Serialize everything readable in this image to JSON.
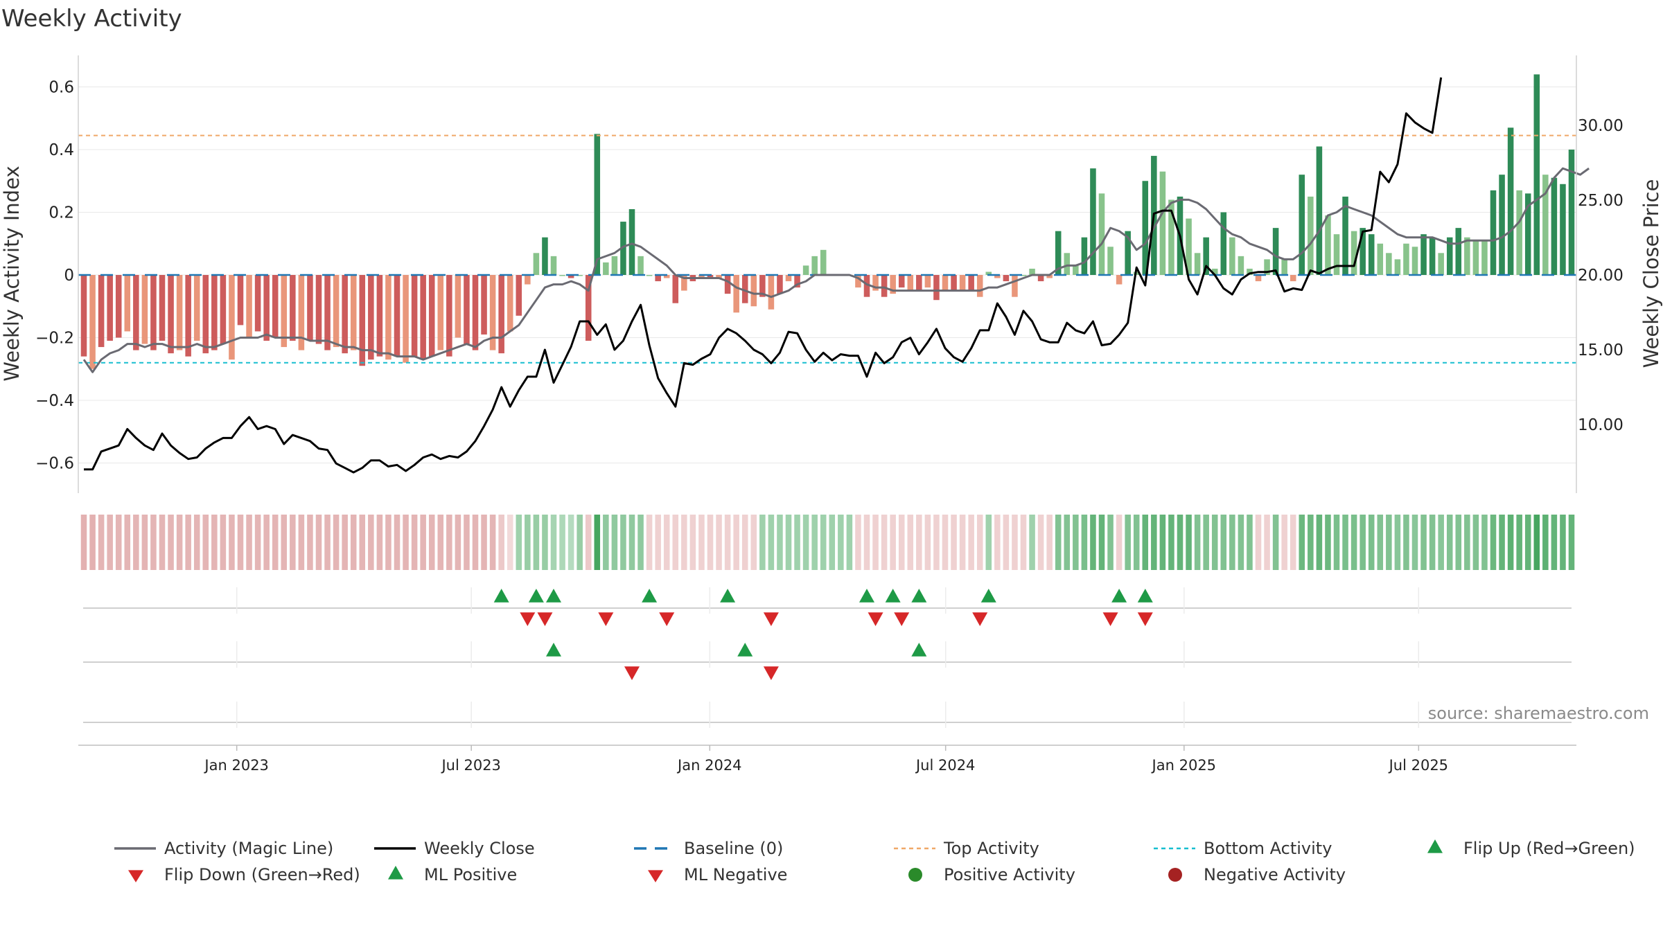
{
  "chart_data": {
    "type": "bar+line",
    "title": "Weekly Activity",
    "ylabel_left": "Weekly Activity Index",
    "ylabel_right": "Weekly Close Price",
    "source": "source: sharemaestro.com",
    "x_start": "2022-09-05",
    "x_end": "2025-10-27",
    "x_tick_labels": [
      {
        "date": "2023-01-01",
        "label": "Jan 2023"
      },
      {
        "date": "2023-07-01",
        "label": "Jul 2023"
      },
      {
        "date": "2024-01-01",
        "label": "Jan 2024"
      },
      {
        "date": "2024-07-01",
        "label": "Jul 2024"
      },
      {
        "date": "2025-01-01",
        "label": "Jan 2025"
      },
      {
        "date": "2025-07-01",
        "label": "Jul 2025"
      }
    ],
    "y_left_range": [
      -0.7,
      0.7
    ],
    "y_left_ticks": [
      {
        "v": 0.6,
        "label": "0.6"
      },
      {
        "v": 0.4,
        "label": "0.4"
      },
      {
        "v": 0.2,
        "label": "0.2"
      },
      {
        "v": 0,
        "label": "0"
      },
      {
        "v": -0.2,
        "label": "−0.2"
      },
      {
        "v": -0.4,
        "label": "−0.4"
      },
      {
        "v": -0.6,
        "label": "−0.6"
      }
    ],
    "y_right_range": [
      5,
      35
    ],
    "y_right_ticks": [
      {
        "v": 30,
        "label": "30.00"
      },
      {
        "v": 25,
        "label": "25.00"
      },
      {
        "v": 20,
        "label": "20.00"
      },
      {
        "v": 15,
        "label": "15.00"
      },
      {
        "v": 10,
        "label": "10.00"
      }
    ],
    "top_activity": 0.445,
    "bottom_activity": -0.28,
    "activity": [
      -0.26,
      -0.3,
      -0.23,
      -0.21,
      -0.2,
      -0.18,
      -0.24,
      -0.22,
      -0.24,
      -0.21,
      -0.25,
      -0.24,
      -0.26,
      -0.21,
      -0.25,
      -0.24,
      -0.22,
      -0.27,
      -0.16,
      -0.2,
      -0.18,
      -0.21,
      -0.2,
      -0.23,
      -0.21,
      -0.24,
      -0.21,
      -0.22,
      -0.24,
      -0.23,
      -0.25,
      -0.24,
      -0.29,
      -0.27,
      -0.26,
      -0.27,
      -0.26,
      -0.28,
      -0.26,
      -0.27,
      -0.26,
      -0.24,
      -0.26,
      -0.2,
      -0.22,
      -0.24,
      -0.19,
      -0.24,
      -0.25,
      -0.18,
      -0.13,
      -0.03,
      0.07,
      0.12,
      0.06,
      0.0,
      -0.01,
      0.0,
      -0.21,
      0.45,
      0.04,
      0.06,
      0.17,
      0.21,
      0.06,
      0.0,
      -0.02,
      -0.01,
      -0.09,
      -0.05,
      -0.02,
      -0.01,
      -0.01,
      -0.01,
      -0.06,
      -0.12,
      -0.09,
      -0.1,
      -0.07,
      -0.11,
      -0.06,
      -0.02,
      -0.04,
      0.03,
      0.06,
      0.08,
      0.0,
      0.0,
      0.0,
      -0.04,
      -0.07,
      -0.05,
      -0.07,
      -0.06,
      -0.04,
      -0.05,
      -0.05,
      -0.04,
      -0.08,
      -0.05,
      -0.05,
      -0.05,
      -0.05,
      -0.07,
      0.01,
      -0.01,
      -0.02,
      -0.07,
      0.0,
      0.02,
      -0.02,
      -0.01,
      0.14,
      0.07,
      0.03,
      0.12,
      0.34,
      0.26,
      0.09,
      -0.03,
      0.14,
      0.01,
      0.3,
      0.38,
      0.33,
      0.24,
      0.25,
      0.18,
      0.07,
      0.12,
      0.02,
      0.2,
      0.12,
      0.06,
      0.02,
      -0.02,
      0.05,
      0.15,
      0.05,
      -0.02,
      0.32,
      0.25,
      0.41,
      0.19,
      0.13,
      0.25,
      0.14,
      0.15,
      0.13,
      0.1,
      0.07,
      0.05,
      0.1,
      0.09,
      0.13,
      0.12,
      0.07,
      0.12,
      0.15,
      0.12,
      0.11,
      0.11,
      0.27,
      0.32,
      0.47,
      0.27,
      0.26,
      0.64,
      0.32,
      0.31,
      0.29,
      0.4
    ],
    "magic_line": [
      -0.27,
      -0.31,
      -0.27,
      -0.25,
      -0.24,
      -0.22,
      -0.22,
      -0.23,
      -0.22,
      -0.22,
      -0.23,
      -0.23,
      -0.23,
      -0.22,
      -0.23,
      -0.23,
      -0.22,
      -0.21,
      -0.2,
      -0.2,
      -0.2,
      -0.19,
      -0.2,
      -0.2,
      -0.2,
      -0.2,
      -0.21,
      -0.21,
      -0.21,
      -0.22,
      -0.23,
      -0.23,
      -0.24,
      -0.24,
      -0.25,
      -0.25,
      -0.26,
      -0.26,
      -0.26,
      -0.27,
      -0.26,
      -0.25,
      -0.24,
      -0.23,
      -0.22,
      -0.23,
      -0.21,
      -0.2,
      -0.2,
      -0.18,
      -0.16,
      -0.12,
      -0.08,
      -0.04,
      -0.03,
      -0.03,
      -0.02,
      -0.03,
      -0.05,
      0.05,
      0.06,
      0.07,
      0.09,
      0.1,
      0.09,
      0.07,
      0.05,
      0.03,
      0.0,
      -0.01,
      -0.01,
      -0.01,
      -0.01,
      -0.01,
      -0.02,
      -0.04,
      -0.05,
      -0.06,
      -0.06,
      -0.07,
      -0.06,
      -0.05,
      -0.03,
      -0.02,
      0.0,
      0.0,
      0.0,
      0.0,
      0.0,
      -0.01,
      -0.03,
      -0.04,
      -0.04,
      -0.05,
      -0.05,
      -0.05,
      -0.05,
      -0.05,
      -0.05,
      -0.05,
      -0.05,
      -0.05,
      -0.05,
      -0.05,
      -0.04,
      -0.04,
      -0.03,
      -0.02,
      -0.01,
      0.0,
      0.0,
      0.0,
      0.02,
      0.03,
      0.03,
      0.04,
      0.07,
      0.1,
      0.15,
      0.14,
      0.12,
      0.08,
      0.1,
      0.15,
      0.2,
      0.23,
      0.24,
      0.24,
      0.23,
      0.21,
      0.18,
      0.15,
      0.13,
      0.12,
      0.1,
      0.09,
      0.08,
      0.06,
      0.05,
      0.05,
      0.07,
      0.1,
      0.14,
      0.19,
      0.2,
      0.22,
      0.21,
      0.2,
      0.19,
      0.17,
      0.15,
      0.13,
      0.12,
      0.12,
      0.12,
      0.12,
      0.11,
      0.1,
      0.1,
      0.11,
      0.11,
      0.11,
      0.11,
      0.12,
      0.14,
      0.17,
      0.22,
      0.24,
      0.26,
      0.31,
      0.34,
      0.33,
      0.32,
      0.34
    ],
    "weekly_close": [
      7.0,
      7.0,
      8.2,
      8.4,
      8.6,
      9.7,
      9.1,
      8.6,
      8.3,
      9.4,
      8.6,
      8.1,
      7.7,
      7.8,
      8.4,
      8.8,
      9.1,
      9.1,
      9.9,
      10.5,
      9.7,
      9.9,
      9.7,
      8.7,
      9.3,
      9.1,
      8.9,
      8.4,
      8.3,
      7.4,
      7.1,
      6.8,
      7.1,
      7.6,
      7.6,
      7.2,
      7.3,
      6.9,
      7.3,
      7.8,
      8.0,
      7.7,
      7.9,
      7.8,
      8.2,
      8.9,
      9.9,
      11.0,
      12.5,
      11.2,
      12.3,
      13.2,
      13.2,
      15.0,
      12.8,
      14.0,
      15.2,
      16.9,
      16.9,
      16.0,
      16.7,
      15.0,
      15.6,
      16.9,
      18.0,
      15.3,
      13.1,
      12.1,
      11.2,
      14.1,
      14.0,
      14.4,
      14.7,
      15.8,
      16.4,
      16.1,
      15.6,
      15.0,
      14.7,
      14.1,
      14.8,
      16.2,
      16.1,
      15.0,
      14.2,
      14.8,
      14.3,
      14.7,
      14.6,
      14.6,
      13.2,
      14.8,
      14.1,
      14.5,
      15.5,
      15.8,
      14.7,
      15.5,
      16.4,
      15.1,
      14.5,
      14.2,
      15.1,
      16.3,
      16.3,
      18.1,
      17.2,
      16.0,
      17.6,
      16.9,
      15.7,
      15.5,
      15.5,
      16.8,
      16.3,
      16.1,
      16.9,
      15.3,
      15.4,
      16.0,
      16.8,
      20.5,
      19.3,
      24.1,
      24.3,
      24.3,
      22.6,
      19.7,
      18.7,
      20.6,
      20.0,
      19.1,
      18.7,
      19.7,
      20.1,
      20.2,
      20.2,
      20.3,
      18.9,
      19.1,
      19.0,
      20.3,
      20.1,
      20.4,
      20.6,
      20.6,
      20.6,
      22.9,
      23.0,
      26.9,
      26.2,
      27.4,
      30.8,
      30.2,
      29.8,
      29.5,
      33.2
    ],
    "state_values": [
      -0.6,
      -0.6,
      -0.55,
      -0.55,
      -0.55,
      -0.55,
      -0.55,
      -0.55,
      -0.55,
      -0.55,
      -0.55,
      -0.55,
      -0.55,
      -0.55,
      -0.55,
      -0.55,
      -0.55,
      -0.55,
      -0.55,
      -0.55,
      -0.55,
      -0.55,
      -0.55,
      -0.55,
      -0.55,
      -0.55,
      -0.55,
      -0.55,
      -0.55,
      -0.55,
      -0.55,
      -0.55,
      -0.55,
      -0.55,
      -0.55,
      -0.55,
      -0.55,
      -0.55,
      -0.55,
      -0.55,
      -0.55,
      -0.55,
      -0.55,
      -0.55,
      -0.55,
      -0.55,
      -0.55,
      -0.55,
      -0.3,
      -0.1,
      0.3,
      0.35,
      0.35,
      0.35,
      0.25,
      0.2,
      0.15,
      0.35,
      -0.3,
      0.9,
      0.4,
      0.4,
      0.4,
      0.4,
      0.4,
      -0.2,
      -0.2,
      -0.2,
      -0.2,
      -0.2,
      -0.2,
      -0.2,
      -0.2,
      -0.2,
      -0.2,
      -0.2,
      -0.2,
      -0.2,
      0.3,
      0.3,
      0.3,
      0.3,
      0.3,
      0.3,
      0.3,
      0.3,
      0.3,
      0.3,
      0.3,
      -0.2,
      -0.2,
      -0.2,
      -0.2,
      -0.2,
      -0.2,
      -0.2,
      -0.2,
      -0.2,
      -0.2,
      -0.2,
      -0.2,
      -0.2,
      -0.2,
      -0.2,
      0.3,
      -0.2,
      -0.2,
      -0.2,
      -0.2,
      0.3,
      -0.2,
      -0.2,
      0.5,
      0.5,
      0.5,
      0.55,
      0.7,
      0.7,
      0.5,
      -0.2,
      0.5,
      0.5,
      0.7,
      0.7,
      0.7,
      0.7,
      0.7,
      0.7,
      0.5,
      0.5,
      0.5,
      0.5,
      0.5,
      0.5,
      0.5,
      -0.2,
      -0.2,
      0.5,
      -0.2,
      -0.2,
      0.65,
      0.65,
      0.7,
      0.65,
      0.55,
      0.55,
      0.55,
      0.55,
      0.55,
      0.5,
      0.5,
      0.45,
      0.5,
      0.45,
      0.5,
      0.5,
      0.45,
      0.5,
      0.5,
      0.5,
      0.5,
      0.5,
      0.65,
      0.7,
      0.75,
      0.7,
      0.7,
      0.9,
      0.75,
      0.7,
      0.7,
      0.7
    ],
    "flip_up": [
      48,
      52,
      54,
      65,
      74,
      90,
      93,
      96,
      104,
      119,
      122
    ],
    "flip_down": [
      51,
      53,
      60,
      67,
      79,
      91,
      94,
      103,
      118,
      122
    ],
    "ml_positive": [
      54,
      76,
      96
    ],
    "ml_negative": [
      63,
      79
    ],
    "colors": {
      "pos_strong": "#2e8b57",
      "pos_light": "#88c38b",
      "neg_strong": "#cd5c5c",
      "neg_light": "#e9967a",
      "state_neg": "#d58a8a",
      "state_pos": "#2e9a4a",
      "magic": "#6a6a72",
      "close": "#000000",
      "baseline": "#1f77b4",
      "top": "#f0a868",
      "bottom": "#17becf",
      "up": "#1e9a46",
      "down": "#d62728",
      "pos_dot": "#2a8a2a",
      "neg_dot": "#a52222"
    },
    "legend": [
      {
        "key": "magic",
        "label": "Activity (Magic Line)"
      },
      {
        "key": "close",
        "label": "Weekly Close"
      },
      {
        "key": "baseline",
        "label": "Baseline (0)"
      },
      {
        "key": "top",
        "label": "Top Activity"
      },
      {
        "key": "bottom",
        "label": "Bottom Activity"
      },
      {
        "key": "flipup",
        "label": "Flip Up (Red→Green)"
      },
      {
        "key": "flipdown",
        "label": "Flip Down (Green→Red)"
      },
      {
        "key": "mlpos",
        "label": "ML Positive"
      },
      {
        "key": "mlneg",
        "label": "ML Negative"
      },
      {
        "key": "posact",
        "label": "Positive Activity"
      },
      {
        "key": "negact",
        "label": "Negative Activity"
      }
    ]
  }
}
